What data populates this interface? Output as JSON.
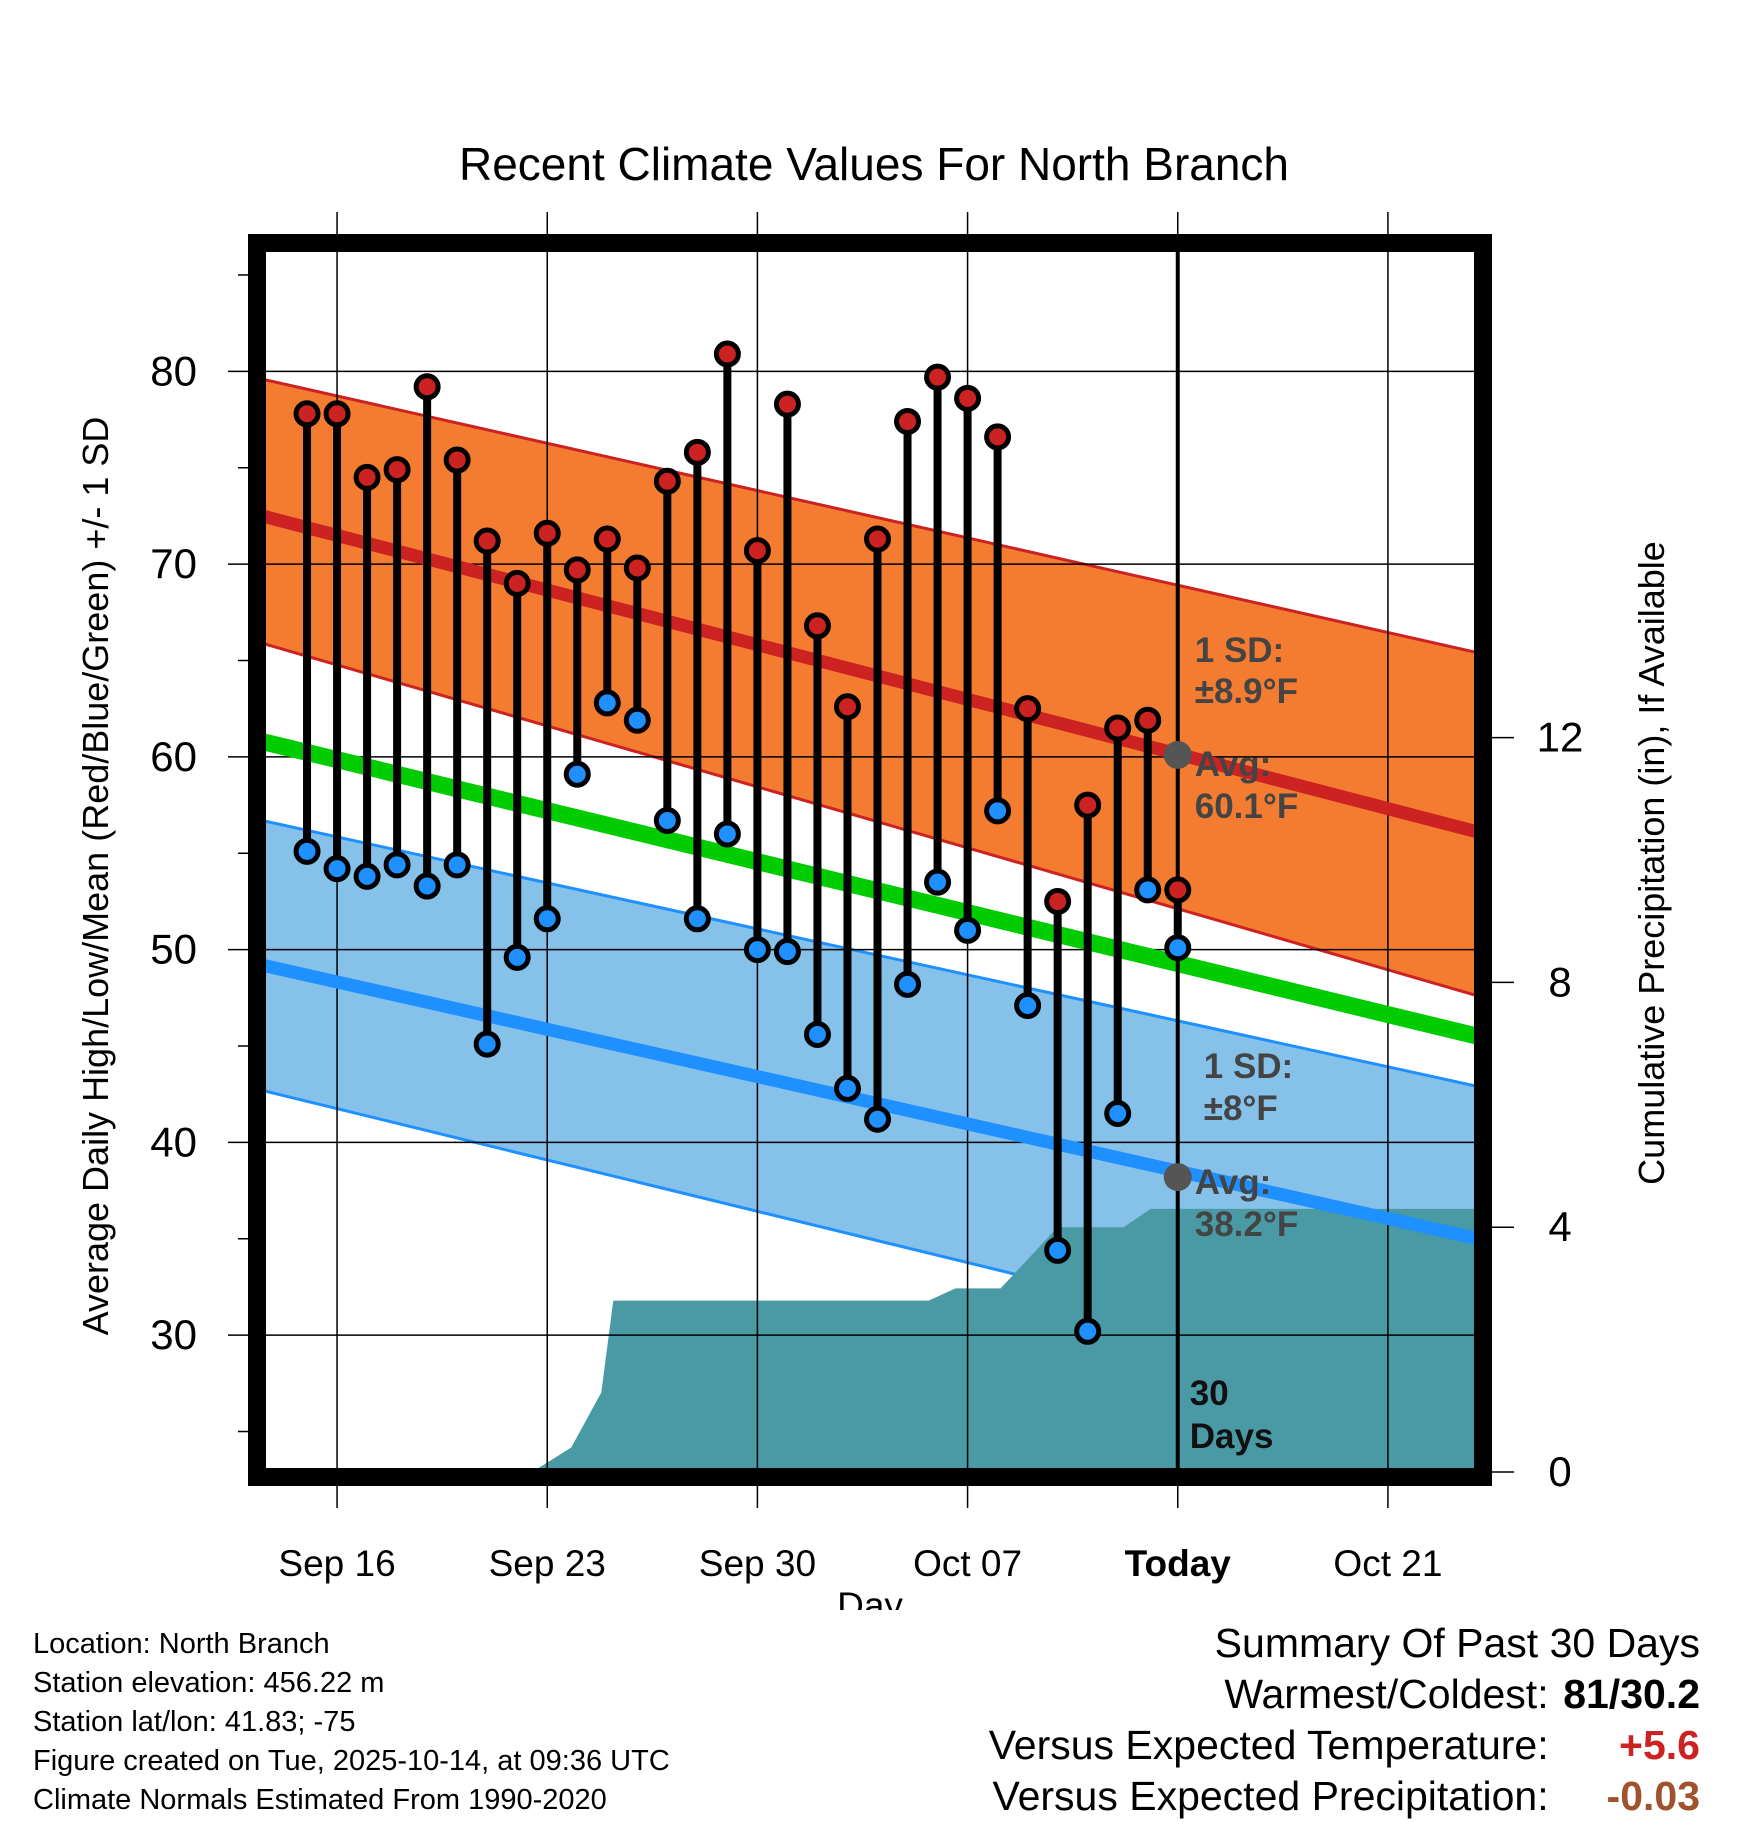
{
  "chart_data": {
    "type": "line",
    "title": "Recent Climate Values For North Branch",
    "xlabel": "Day",
    "ylabel": "Average Daily High/Low/Mean (Red/Blue/Green) +/- 1 SD",
    "y2label": "Cumulative Precipitation (in), If Available",
    "ylim": [
      22.9,
      86.4
    ],
    "y2lim": [
      0,
      20
    ],
    "xlim_days": [
      -30.5,
      10
    ],
    "y_ticks": [
      30,
      40,
      50,
      60,
      70,
      80
    ],
    "y2_ticks": [
      0,
      4,
      8,
      12
    ],
    "x_ticks": [
      {
        "day": -28,
        "label": "Sep 16"
      },
      {
        "day": -21,
        "label": "Sep 23"
      },
      {
        "day": -14,
        "label": "Sep 30"
      },
      {
        "day": -7,
        "label": "Oct 07"
      },
      {
        "day": 0,
        "label": "Today"
      },
      {
        "day": 7,
        "label": "Oct 21"
      }
    ],
    "normals": {
      "high_mean": {
        "start": 72.5,
        "end": 56.1
      },
      "high_sd_band": {
        "start_low": 65.9,
        "start_high": 79.6,
        "end_low": 47.6,
        "end_high": 65.4
      },
      "low_mean": {
        "start": 49.2,
        "end": 35.0
      },
      "low_sd_band": {
        "start_low": 42.7,
        "start_high": 56.7,
        "end_low": 27.3,
        "end_high": 42.9
      },
      "daily_mean": {
        "start": 60.8,
        "end": 45.5
      }
    },
    "series": [
      {
        "name": "Daily High",
        "color": "#cc2222",
        "values": [
          77.8,
          77.8,
          74.5,
          74.9,
          79.2,
          75.4,
          71.2,
          69.0,
          71.6,
          69.7,
          71.3,
          69.8,
          74.3,
          75.8,
          80.9,
          70.7,
          78.3,
          66.8,
          62.6,
          71.3,
          77.4,
          79.7,
          78.6,
          76.6,
          62.5,
          52.5,
          57.5,
          61.5,
          61.9,
          53.1
        ]
      },
      {
        "name": "Daily Low",
        "color": "#1e90ff",
        "values": [
          55.1,
          54.2,
          53.8,
          54.4,
          53.3,
          54.4,
          45.1,
          49.6,
          51.6,
          59.1,
          62.8,
          61.9,
          56.7,
          51.6,
          56.0,
          50.0,
          49.9,
          45.6,
          42.8,
          41.2,
          48.2,
          53.5,
          51.0,
          57.2,
          47.1,
          34.4,
          30.2,
          41.5,
          53.1,
          50.1
        ]
      }
    ],
    "series_days": [
      -29,
      -28,
      -27,
      -26,
      -25,
      -24,
      -23,
      -22,
      -21,
      -20,
      -19,
      -18,
      -17,
      -16,
      -15,
      -14,
      -13,
      -12,
      -11,
      -10,
      -9,
      -8,
      -7,
      -6,
      -5,
      -4,
      -3,
      -2,
      -1,
      0
    ],
    "precip_cumulative": {
      "days": [
        -30.5,
        -21.5,
        -20.2,
        -19.2,
        -18.8,
        -17.5,
        -9.3,
        -8.3,
        -7.4,
        -7.1,
        -5.9,
        -4.0,
        -3.8,
        -2.1,
        -1.8,
        -0.9,
        10.0
      ],
      "values": [
        0,
        0,
        0.4,
        1.3,
        2.8,
        2.8,
        2.8,
        2.8,
        3.0,
        3.0,
        3.0,
        4.0,
        4.0,
        4.0,
        4.0,
        4.3,
        4.3
      ]
    },
    "annotations": {
      "high": {
        "sd_label": "1 SD:",
        "sd_value": "±8.9°F",
        "avg_label": "Avg:",
        "avg_value": "60.1°F",
        "today_value": 60.1
      },
      "low": {
        "sd_label": "1 SD:",
        "sd_value": "±8°F",
        "avg_label": "Avg:",
        "avg_value": "38.2°F",
        "today_value": 38.2
      },
      "window": "30 Days"
    },
    "legend": "none",
    "grid": true
  },
  "footer": {
    "location": "Location: North Branch",
    "elevation": "Station elevation: 456.22 m",
    "latlon": "Station lat/lon: 41.83; -75",
    "created": "Figure created on Tue, 2025-10-14, at 09:36 UTC",
    "normals": "Climate Normals Estimated From 1990-2020"
  },
  "summary": {
    "title": "Summary Of Past 30 Days",
    "warmest_label": "Warmest/Coldest:",
    "warmest_value": "81/30.2",
    "temp_label": "Versus Expected Temperature:",
    "temp_value": "+5.6",
    "temp_color": "#cc2222",
    "precip_label": "Versus Expected Precipitation:",
    "precip_value": "-0.03",
    "precip_color": "#a0522d"
  }
}
